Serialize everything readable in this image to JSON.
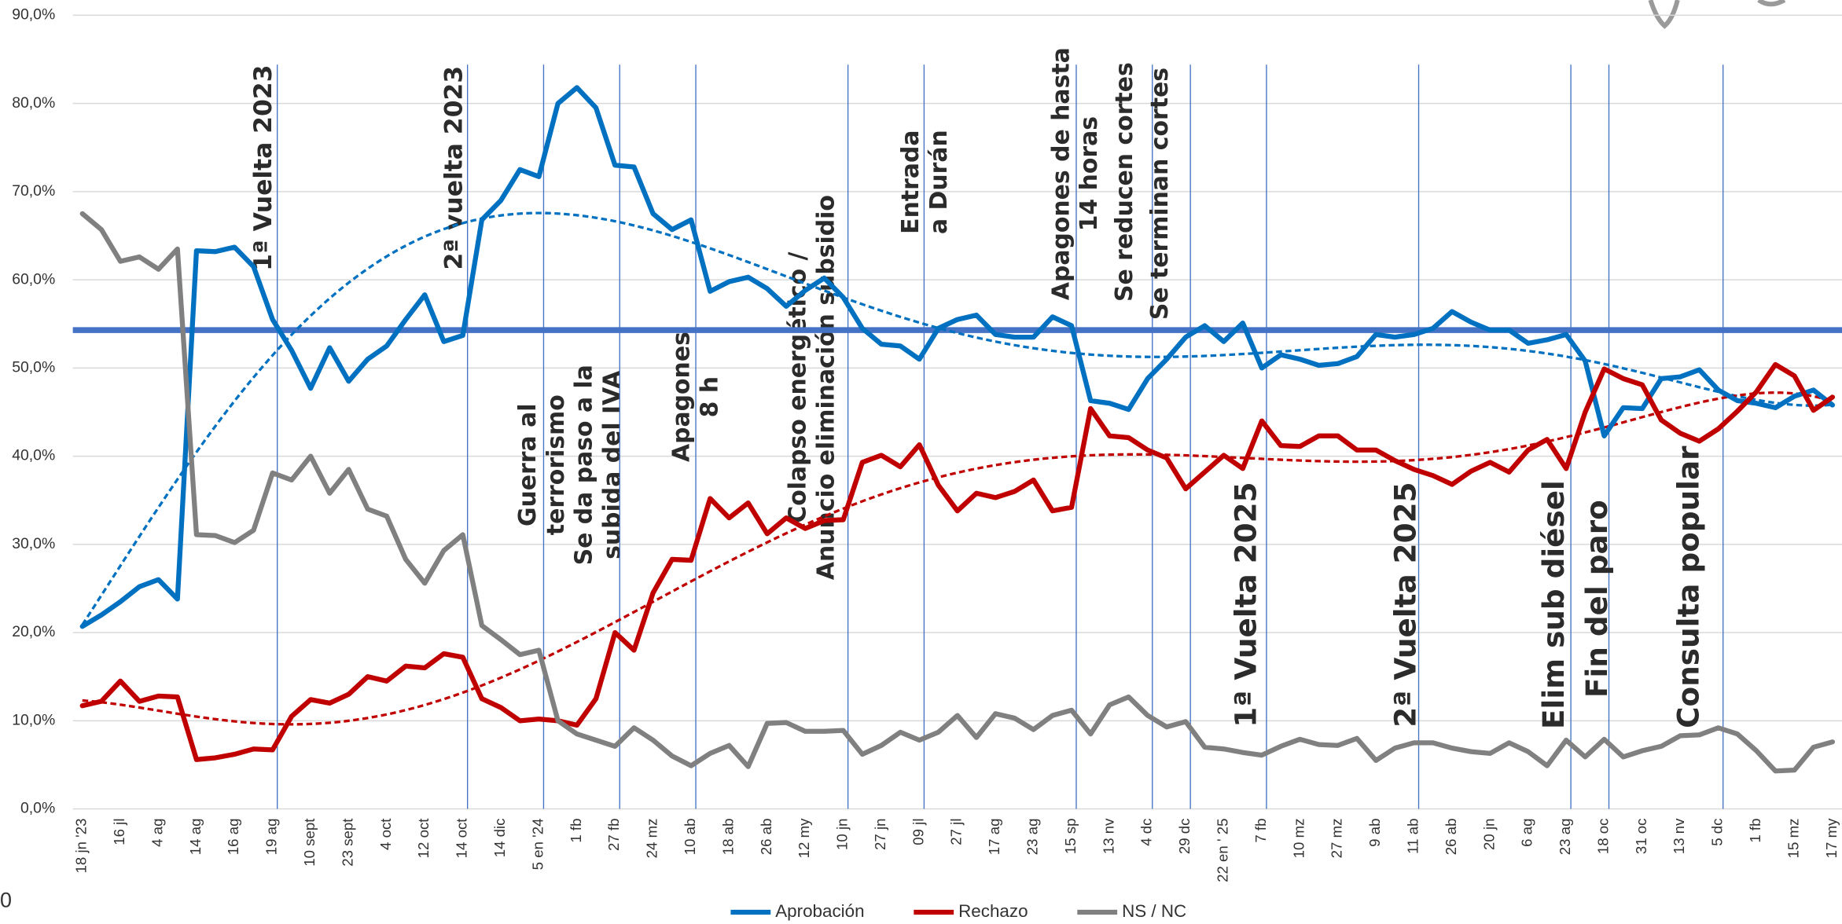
{
  "chart_data": {
    "type": "line",
    "categories": [
      "18 jn '23",
      null,
      "16 jl",
      null,
      "4 ag",
      null,
      "14 ag",
      null,
      "16 ag",
      null,
      "19 ag",
      null,
      "10 sept",
      null,
      "23 sept",
      null,
      "4 oct",
      null,
      "12 oct",
      null,
      "14 oct",
      null,
      "14 dic",
      null,
      "5 en '24",
      null,
      "1 fb",
      null,
      "27 fb",
      null,
      "24 mz",
      null,
      "10 ab",
      null,
      "18 ab",
      null,
      "26 ab",
      null,
      "12 my",
      null,
      "10 jn",
      null,
      "27 jn",
      null,
      "09 jl",
      null,
      "27 jl",
      null,
      "17 ag",
      null,
      "23 ag",
      null,
      "15 sp",
      null,
      "13 nv",
      null,
      "4 dc",
      null,
      "29 dc",
      null,
      "22 en ' 25",
      null,
      "7 fb",
      null,
      "10 mz",
      null,
      "27 mz",
      null,
      "9 ab",
      null,
      "11 ab",
      null,
      "26 ab",
      null,
      "20 jn",
      null,
      "6 ag",
      null,
      "23 ag",
      null,
      "18 oc",
      null,
      "31 oc",
      null,
      "13 nv",
      null,
      "5 dc",
      null,
      "1 fb",
      null,
      "15 mz",
      null,
      "17 my"
    ],
    "series": [
      {
        "name": "Aprobación",
        "color": "#0070c0",
        "trendline": "polynomial",
        "values": [
          20.7,
          22,
          23.5,
          25.2,
          26,
          23.8,
          63.3,
          63.2,
          63.7,
          61.5,
          55.5,
          52,
          47.7,
          52.3,
          48.5,
          51,
          52.5,
          55.5,
          58.3,
          53,
          53.7,
          66.8,
          69,
          72.5,
          71.7,
          80,
          81.8,
          79.5,
          73,
          72.8,
          67.5,
          65.7,
          66.8,
          58.7,
          59.8,
          60.3,
          59,
          57,
          58.8,
          60.2,
          58,
          54.5,
          52.7,
          52.5,
          51,
          54.5,
          55.5,
          56,
          53.8,
          53.5,
          53.5,
          55.8,
          54.8,
          46.3,
          46,
          45.3,
          48.8,
          51,
          53.5,
          54.8,
          53,
          55.1,
          50,
          51.5,
          51,
          50.3,
          50.5,
          51.3,
          53.8,
          53.5,
          53.8,
          54.5,
          56.4,
          55.2,
          54.3,
          54.3,
          52.8,
          53.2,
          53.8,
          50.8,
          42.3,
          45.5,
          45.4,
          48.8,
          49,
          49.8,
          47.5,
          46.3,
          46,
          45.5,
          46.8,
          47.5,
          45.8
        ]
      },
      {
        "name": "Rechazo",
        "color": "#c00000",
        "trendline": "polynomial",
        "values": [
          11.7,
          12.2,
          14.5,
          12.2,
          12.8,
          12.7,
          5.6,
          5.8,
          6.2,
          6.8,
          6.7,
          10.5,
          12.4,
          12,
          13,
          15,
          14.5,
          16.2,
          16,
          17.6,
          17.2,
          12.5,
          11.5,
          10,
          10.2,
          10,
          9.5,
          12.5,
          20,
          18,
          24.5,
          28.3,
          28.2,
          35.2,
          33,
          34.7,
          31.2,
          33,
          31.8,
          32.7,
          32.8,
          39.3,
          40.1,
          38.8,
          41.3,
          36.7,
          33.8,
          35.8,
          35.3,
          36,
          37.3,
          33.8,
          34.2,
          45.4,
          42.3,
          42.1,
          40.7,
          39.8,
          36.3,
          38.2,
          40.1,
          38.6,
          44,
          41.2,
          41.1,
          42.3,
          42.3,
          40.7,
          40.7,
          39.5,
          38.5,
          37.8,
          36.8,
          38.3,
          39.3,
          38.2,
          40.7,
          41.9,
          38.6,
          45,
          49.9,
          48.8,
          48.1,
          44.1,
          42.6,
          41.7,
          43.1,
          45.1,
          47.3,
          50.4,
          49.1,
          45.2,
          46.7
        ]
      },
      {
        "name": "NS / NC",
        "color": "#808080",
        "values": [
          67.5,
          65.7,
          62.1,
          62.6,
          61.2,
          63.5,
          31.1,
          31,
          30.2,
          31.6,
          38.1,
          37.3,
          40,
          35.8,
          38.5,
          34,
          33.2,
          28.3,
          25.6,
          29.3,
          31.1,
          20.8,
          19.2,
          17.5,
          18,
          10,
          8.5,
          7.8,
          7.1,
          9.2,
          7.8,
          6,
          4.9,
          6.3,
          7.2,
          4.8,
          9.7,
          9.8,
          8.8,
          8.8,
          8.9,
          6.2,
          7.2,
          8.7,
          7.8,
          8.7,
          10.6,
          8.1,
          10.8,
          10.3,
          9,
          10.6,
          11.2,
          8.5,
          11.8,
          12.7,
          10.6,
          9.3,
          9.9,
          7,
          6.8,
          6.4,
          6.1,
          7.1,
          7.9,
          7.3,
          7.2,
          8,
          5.5,
          6.9,
          7.5,
          7.5,
          6.9,
          6.5,
          6.3,
          7.5,
          6.5,
          4.9,
          7.8,
          5.9,
          7.9,
          5.9,
          6.6,
          7.1,
          8.3,
          8.4,
          9.2,
          8.5,
          6.6,
          4.3,
          4.4,
          7,
          7.6
        ]
      }
    ],
    "trendline_order": 6,
    "reference_line": 54.3,
    "reference_color": "#4472c4",
    "event_color": "#4472c4",
    "events": [
      {
        "at": "19 ag",
        "label": [
          "1ª Vuelta 2023"
        ]
      },
      {
        "at": "14 oct",
        "label": [
          "2ª vuelta 2023"
        ]
      },
      {
        "at": "5 en '24",
        "label": [
          "Guerra al",
          "terrorismo",
          "Se da paso a la",
          "subida del IVA"
        ]
      },
      {
        "at": "27 fb"
      },
      {
        "at": "10 ab",
        "label": [
          "Apagones",
          "8 h"
        ]
      },
      {
        "at": "10 jn",
        "label": [
          "Colapso energético /",
          "Anuncio eliminación subsidio"
        ]
      },
      {
        "at": "09 jl",
        "label": [
          "Entrada",
          "a Durán"
        ]
      },
      {
        "at": "15 sp",
        "label": [
          "Apagones de hasta",
          "14 horas"
        ]
      },
      {
        "at": "4 dc",
        "label": [
          "Se reducen cortes"
        ]
      },
      {
        "at": "29 dc",
        "label": [
          "Se terminan cortes"
        ]
      },
      {
        "at": "7 fb",
        "label": [
          "1ª Vuelta 2025"
        ]
      },
      {
        "at": "11 ab",
        "label": [
          "2ª Vuelta 2025"
        ]
      },
      {
        "at": "23 ag",
        "label": [
          "Elim sub diésel"
        ]
      },
      {
        "at": "18 oc",
        "label": [
          "Fin del paro"
        ]
      },
      {
        "at": "5 dc",
        "label": [
          "Consulta popular"
        ]
      }
    ],
    "ylim": [
      0,
      90
    ],
    "yticks": [
      {
        "value": 0,
        "label": "0,0%"
      },
      {
        "value": 10,
        "label": "10,0%"
      },
      {
        "value": 20,
        "label": "20,0%"
      },
      {
        "value": 30,
        "label": "30,0%"
      },
      {
        "value": 40,
        "label": "40,0%"
      },
      {
        "value": 50,
        "label": "50,0%"
      },
      {
        "value": 60,
        "label": "60,0%"
      },
      {
        "value": 70,
        "label": "70,0%"
      },
      {
        "value": 80,
        "label": "80,0%"
      },
      {
        "value": 90,
        "label": "90,0%"
      }
    ],
    "grid": true,
    "legend": "bottom",
    "corner_text": "0"
  }
}
